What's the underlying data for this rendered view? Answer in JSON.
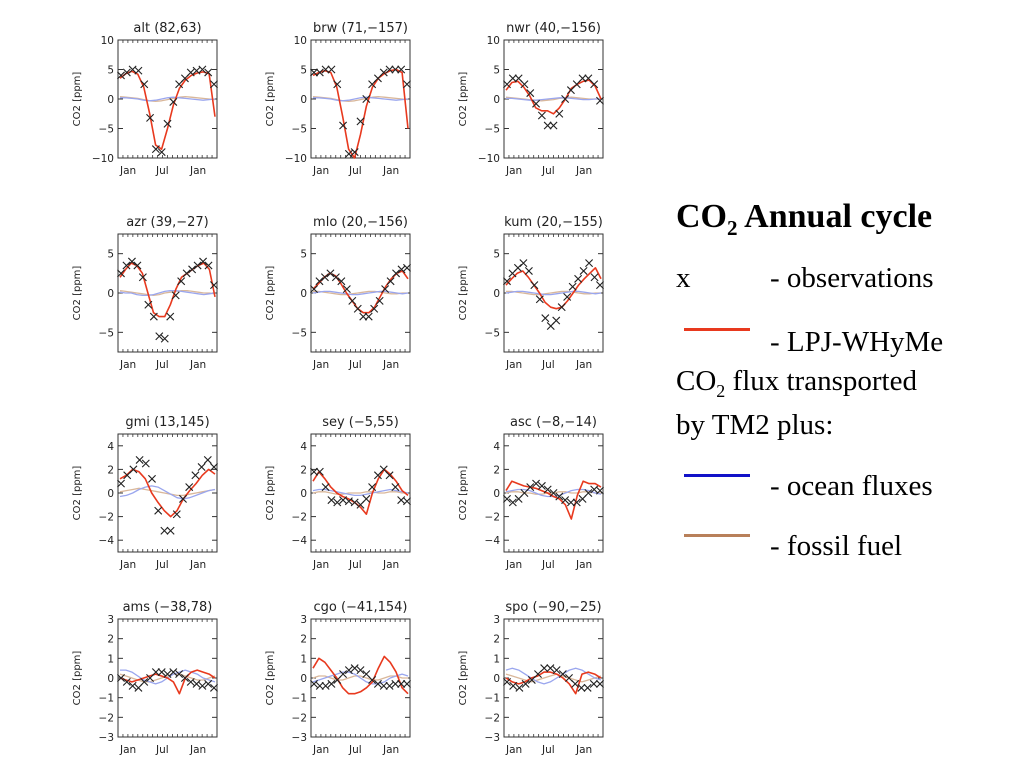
{
  "colors": {
    "model": "#e8391e",
    "ocean": "#1212c8",
    "fossil": "#b8805a",
    "ocean_light": "#9aa6ee",
    "fossil_light": "#d9b79a",
    "obs": "#222222"
  },
  "legend": {
    "title_a": "CO",
    "title_sub": "2",
    "title_b": " Annual cycle",
    "obs_symbol": "x",
    "obs_label": "- observations",
    "model_label": "- LPJ-WHyMe",
    "transport_a": "CO",
    "transport_sub": "2",
    "transport_b": " flux transported",
    "transport_c": "by TM2 plus:",
    "ocean_label": "- ocean fluxes",
    "fossil_label": "- fossil fuel"
  },
  "chart_data": [
    {
      "type": "line",
      "title": "alt (82,63)",
      "ylabel": "CO2 [ppm]",
      "xticks": [
        "Jan",
        "Jul",
        "Jan"
      ],
      "ylim": [
        -10,
        10
      ],
      "yticks": [
        -10,
        -5,
        0,
        5,
        10
      ],
      "obs": [
        4,
        4.5,
        5,
        4.8,
        2.5,
        -3.2,
        -8.5,
        -9,
        -4.2,
        -0.5,
        2.5,
        3.5,
        4.5,
        4.8,
        5,
        4.5,
        2.5
      ],
      "model": [
        3.5,
        4.3,
        4.7,
        4.2,
        2,
        -2.5,
        -7.8,
        -8.5,
        -5,
        -1,
        1.8,
        3.2,
        4,
        4.4,
        4.6,
        4.3,
        -3
      ],
      "ocean": [
        0.2,
        0.2,
        0.1,
        0,
        -0.2,
        -0.3,
        -0.2,
        0,
        0.2,
        0.3,
        0.2,
        0.1,
        0,
        -0.1,
        -0.2,
        -0.1,
        0
      ],
      "fossil": [
        0.4,
        0.3,
        0.2,
        0.1,
        -0.1,
        -0.3,
        -0.4,
        -0.3,
        -0.1,
        0.1,
        0.3,
        0.4,
        0.3,
        0.2,
        0.1,
        0,
        -0.1
      ]
    },
    {
      "type": "line",
      "title": "brw (71,−157)",
      "ylabel": "CO2 [ppm]",
      "xticks": [
        "Jan",
        "Jul",
        "Jan"
      ],
      "ylim": [
        -10,
        10
      ],
      "yticks": [
        -10,
        -5,
        0,
        5,
        10
      ],
      "obs": [
        4.5,
        4.5,
        5,
        5,
        2.5,
        -4.5,
        -9.3,
        -9,
        -3.8,
        0,
        2.5,
        3.5,
        4.5,
        5,
        5,
        5,
        2.5
      ],
      "model": [
        4,
        4.5,
        4.8,
        4.5,
        2,
        -3,
        -8.5,
        -10,
        -6,
        -1.2,
        2,
        3.5,
        4.3,
        4.8,
        5,
        4.5,
        -5
      ],
      "ocean": [
        0.2,
        0.2,
        0.1,
        0,
        -0.2,
        -0.3,
        -0.2,
        0,
        0.2,
        0.3,
        0.2,
        0.1,
        0,
        -0.1,
        -0.2,
        -0.1,
        0
      ],
      "fossil": [
        0.4,
        0.3,
        0.2,
        0.1,
        -0.1,
        -0.3,
        -0.4,
        -0.3,
        -0.1,
        0.1,
        0.3,
        0.4,
        0.3,
        0.2,
        0.1,
        0,
        -0.1
      ]
    },
    {
      "type": "line",
      "title": "nwr (40,−156)",
      "ylabel": "CO2 [ppm]",
      "xticks": [
        "Jan",
        "Jul",
        "Jan"
      ],
      "ylim": [
        -10,
        10
      ],
      "yticks": [
        -10,
        -5,
        0,
        5,
        10
      ],
      "obs": [
        2.5,
        3.5,
        3.5,
        2.5,
        1,
        -0.8,
        -2.8,
        -4.5,
        -4.5,
        -2.5,
        0,
        1.5,
        2.5,
        3.5,
        3.5,
        2.5,
        -0.3
      ],
      "model": [
        1.5,
        2.8,
        3,
        2,
        0.5,
        -1.5,
        -2,
        -2,
        -2.5,
        -1.5,
        0,
        1.8,
        2.5,
        3,
        3.2,
        2.2,
        0
      ],
      "ocean": [
        0.1,
        0.1,
        0,
        -0.1,
        -0.2,
        -0.2,
        -0.1,
        0,
        0.1,
        0.2,
        0.2,
        0.1,
        0,
        -0.1,
        -0.1,
        0,
        0
      ],
      "fossil": [
        0.3,
        0.2,
        0.1,
        0,
        -0.1,
        -0.2,
        -0.3,
        -0.2,
        -0.1,
        0.1,
        0.2,
        0.3,
        0.2,
        0.1,
        0,
        0,
        0
      ]
    },
    {
      "type": "line",
      "title": "azr (39,−27)",
      "ylabel": "CO2 [ppm]",
      "xticks": [
        "Jan",
        "Jul",
        "Jan"
      ],
      "ylim": [
        -7.5,
        7.5
      ],
      "yticks": [
        -5,
        0,
        5
      ],
      "obs": [
        2.5,
        3.5,
        4,
        3.5,
        2,
        -1.5,
        -3,
        -5.5,
        -5.8,
        -3,
        -0.3,
        1.5,
        2.5,
        3,
        3.5,
        4,
        3.5,
        1
      ],
      "model": [
        2,
        3,
        3.8,
        3.5,
        2.5,
        0,
        -2.5,
        -3,
        -3,
        -1.5,
        0.5,
        2,
        2.5,
        3,
        3.5,
        3.8,
        3,
        -0.5
      ],
      "ocean": [
        0.1,
        0,
        0,
        -0.2,
        -0.3,
        -0.3,
        -0.2,
        0,
        0.2,
        0.3,
        0.3,
        0.2,
        0.1,
        0,
        -0.1,
        -0.2,
        -0.1,
        0
      ],
      "fossil": [
        0.3,
        0.2,
        0.1,
        0,
        -0.1,
        -0.2,
        -0.3,
        -0.2,
        0,
        0.1,
        0.2,
        0.3,
        0.3,
        0.2,
        0.1,
        0,
        0,
        -0.1
      ]
    },
    {
      "type": "line",
      "title": "mlo (20,−156)",
      "ylabel": "CO2 [ppm]",
      "xticks": [
        "Jan",
        "Jul",
        "Jan"
      ],
      "ylim": [
        -7.5,
        7.5
      ],
      "yticks": [
        -5,
        0,
        5
      ],
      "obs": [
        0.5,
        1.5,
        2,
        2.5,
        2,
        1.5,
        0.5,
        -1,
        -2,
        -3,
        -3,
        -2,
        -1,
        0.5,
        1.5,
        2.5,
        3,
        3.2
      ],
      "model": [
        0.5,
        1.2,
        2,
        2.5,
        2.2,
        1.2,
        0,
        -1,
        -2,
        -2.5,
        -2.5,
        -1.8,
        -0.5,
        0.8,
        1.8,
        2.5,
        2.8,
        1.8
      ],
      "ocean": [
        0,
        0.1,
        0.2,
        0.2,
        0.1,
        0,
        -0.1,
        -0.2,
        -0.2,
        -0.1,
        0,
        0.1,
        0.2,
        0.2,
        0.1,
        0,
        -0.1,
        0
      ],
      "fossil": [
        0.2,
        0.2,
        0.1,
        0,
        -0.1,
        -0.2,
        -0.2,
        -0.1,
        0,
        0.1,
        0.2,
        0.2,
        0.1,
        0,
        -0.1,
        -0.1,
        0,
        0
      ]
    },
    {
      "type": "line",
      "title": "kum (20,−155)",
      "ylabel": "CO2 [ppm]",
      "xticks": [
        "Jan",
        "Jul",
        "Jan"
      ],
      "ylim": [
        -7.5,
        7.5
      ],
      "yticks": [
        -5,
        0,
        5
      ],
      "obs": [
        1.5,
        2.5,
        3.2,
        3.8,
        2.8,
        1,
        -0.8,
        -3.2,
        -4.2,
        -3.5,
        -1.8,
        -0.5,
        0.8,
        1.8,
        2.8,
        3.8,
        2,
        1
      ],
      "model": [
        1,
        1.8,
        2.5,
        2.8,
        2,
        1,
        0,
        -1.2,
        -1.8,
        -2,
        -1.8,
        -1,
        0,
        1,
        1.8,
        2.5,
        3.2,
        1.8
      ],
      "ocean": [
        0,
        0.1,
        0.2,
        0.2,
        0.1,
        0,
        -0.1,
        -0.2,
        -0.2,
        -0.1,
        0,
        0.1,
        0.2,
        0.2,
        0.1,
        0,
        -0.1,
        0
      ],
      "fossil": [
        0.2,
        0.2,
        0.1,
        0,
        -0.1,
        -0.2,
        -0.2,
        -0.1,
        0,
        0.1,
        0.2,
        0.2,
        0.1,
        0,
        -0.1,
        -0.1,
        0,
        0
      ]
    },
    {
      "type": "line",
      "title": "gmi (13,145)",
      "ylabel": "CO2 [ppm]",
      "xticks": [
        "Jan",
        "Jul",
        "Jan"
      ],
      "ylim": [
        -5,
        5
      ],
      "yticks": [
        -4,
        -2,
        0,
        2,
        4
      ],
      "obs": [
        0.8,
        1.5,
        2,
        2.8,
        2.5,
        1.2,
        -1.5,
        -3.2,
        -3.2,
        -1.8,
        -0.5,
        0.5,
        1.5,
        2.2,
        2.8,
        2.2
      ],
      "model": [
        1.2,
        1.5,
        2,
        1.8,
        1.2,
        0,
        -0.8,
        -1.5,
        -2,
        -1.5,
        -0.5,
        0.2,
        0.8,
        1.5,
        2,
        1.6
      ],
      "ocean": [
        -0.3,
        -0.2,
        0,
        0.3,
        0.5,
        0.6,
        0.5,
        0.2,
        -0.1,
        -0.4,
        -0.5,
        -0.4,
        -0.2,
        0,
        0.2,
        0.3
      ],
      "fossil": [
        0.1,
        0.2,
        0.3,
        0.4,
        0.3,
        0.2,
        0.1,
        0,
        -0.1,
        -0.2,
        -0.2,
        -0.1,
        0,
        0.1,
        0.2,
        0.3
      ]
    },
    {
      "type": "line",
      "title": "sey (−5,55)",
      "ylabel": "CO2 [ppm]",
      "xticks": [
        "Jan",
        "Jul",
        "Jan"
      ],
      "ylim": [
        -5,
        5
      ],
      "yticks": [
        -4,
        -2,
        0,
        2,
        4
      ],
      "obs": [
        1.8,
        1.8,
        0.5,
        -0.6,
        -0.8,
        -0.6,
        -0.7,
        -0.8,
        -1,
        -0.5,
        0.5,
        1.5,
        2,
        1.5,
        0.5,
        -0.6,
        -0.7
      ],
      "model": [
        1,
        1.8,
        1.2,
        0.5,
        0,
        -0.3,
        -0.5,
        -0.8,
        -1.2,
        -1.8,
        0,
        1.2,
        2,
        1.6,
        1,
        0.2,
        -0.2
      ],
      "ocean": [
        0.2,
        0.3,
        0.3,
        0.2,
        0.1,
        0,
        -0.1,
        -0.2,
        -0.2,
        -0.1,
        0,
        0.1,
        0.2,
        0.3,
        0.2,
        0.1,
        0
      ],
      "fossil": [
        0,
        0.1,
        0.1,
        0,
        -0.1,
        -0.1,
        0,
        0,
        0,
        0.1,
        0.1,
        0,
        0,
        0.1,
        0.1,
        0,
        0
      ]
    },
    {
      "type": "line",
      "title": "asc (−8,−14)",
      "ylabel": "CO2 [ppm]",
      "xticks": [
        "Jan",
        "Jul",
        "Jan"
      ],
      "ylim": [
        -5,
        5
      ],
      "yticks": [
        -4,
        -2,
        0,
        2,
        4
      ],
      "obs": [
        -0.5,
        -0.8,
        -0.5,
        0,
        0.5,
        0.8,
        0.6,
        0.3,
        0,
        -0.3,
        -0.6,
        -0.8,
        -0.8,
        -0.5,
        0,
        0.3,
        0.2
      ],
      "model": [
        0.2,
        1,
        0.8,
        0.6,
        0.5,
        0.4,
        0.2,
        0,
        -0.3,
        -0.5,
        -1,
        -2.2,
        -0.2,
        1,
        0.8,
        0.8,
        0.5
      ],
      "ocean": [
        0.1,
        0.2,
        0.3,
        0.3,
        0.2,
        0,
        -0.2,
        -0.3,
        -0.3,
        -0.2,
        0,
        0.2,
        0.3,
        0.3,
        0.2,
        0,
        -0.1
      ],
      "fossil": [
        0,
        0.1,
        0.1,
        0,
        0,
        -0.1,
        -0.1,
        0,
        0,
        0.1,
        0.1,
        0,
        0,
        0.1,
        0.1,
        0,
        0
      ]
    },
    {
      "type": "line",
      "title": "ams (−38,78)",
      "ylabel": "CO2 [ppm]",
      "xticks": [
        "Jan",
        "Jul",
        "Jan"
      ],
      "ylim": [
        -3,
        3
      ],
      "yticks": [
        -3,
        -2,
        -1,
        0,
        1,
        2,
        3
      ],
      "obs": [
        0,
        -0.2,
        -0.4,
        -0.5,
        -0.2,
        0,
        0.3,
        0.3,
        0.2,
        0.3,
        0.2,
        0,
        -0.2,
        -0.3,
        -0.4,
        -0.3,
        -0.5
      ],
      "model": [
        0,
        -0.1,
        -0.2,
        -0.1,
        0,
        0.1,
        0.2,
        0.1,
        0,
        -0.2,
        -0.8,
        0,
        0.3,
        0.4,
        0.3,
        0.2,
        0
      ],
      "ocean": [
        0.4,
        0.4,
        0.3,
        0.1,
        -0.1,
        -0.2,
        -0.3,
        -0.2,
        0,
        0.2,
        0.3,
        0.4,
        0.3,
        0.2,
        0,
        -0.1,
        -0.2
      ],
      "fossil": [
        0.2,
        0.1,
        0,
        -0.1,
        -0.2,
        -0.2,
        -0.1,
        0,
        0.1,
        0.2,
        0.2,
        0.1,
        0,
        -0.1,
        -0.1,
        0,
        0.1
      ]
    },
    {
      "type": "line",
      "title": "cgo (−41,154)",
      "ylabel": "CO2 [ppm]",
      "xticks": [
        "Jan",
        "Jul",
        "Jan"
      ],
      "ylim": [
        -3,
        3
      ],
      "yticks": [
        -3,
        -2,
        -1,
        0,
        1,
        2,
        3
      ],
      "obs": [
        -0.3,
        -0.4,
        -0.4,
        -0.3,
        -0.1,
        0.2,
        0.4,
        0.5,
        0.4,
        0.2,
        -0.1,
        -0.3,
        -0.4,
        -0.4,
        -0.3,
        -0.3,
        -0.3
      ],
      "model": [
        0.5,
        1,
        0.8,
        0.4,
        0,
        -0.5,
        -0.8,
        -0.8,
        -0.7,
        -0.5,
        -0.2,
        0.5,
        1.1,
        0.8,
        0.3,
        -0.5,
        -0.8
      ],
      "ocean": [
        -0.2,
        -0.1,
        0,
        0.1,
        0.2,
        0.3,
        0.3,
        0.2,
        0,
        -0.2,
        -0.3,
        -0.3,
        -0.2,
        0,
        0.1,
        0.2,
        0.1
      ],
      "fossil": [
        0,
        0.1,
        0.1,
        0,
        -0.1,
        -0.1,
        0,
        0.1,
        0.1,
        0,
        -0.1,
        -0.1,
        0,
        0.1,
        0.1,
        0,
        0
      ]
    },
    {
      "type": "line",
      "title": "spo (−90,−25)",
      "ylabel": "CO2 [ppm]",
      "xticks": [
        "Jan",
        "Jul",
        "Jan"
      ],
      "ylim": [
        -3,
        3
      ],
      "yticks": [
        -3,
        -2,
        -1,
        0,
        1,
        2,
        3
      ],
      "obs": [
        -0.2,
        -0.4,
        -0.5,
        -0.3,
        -0.1,
        0.2,
        0.5,
        0.5,
        0.4,
        0.2,
        0,
        -0.3,
        -0.5,
        -0.5,
        -0.3,
        -0.3
      ],
      "model": [
        0,
        -0.2,
        -0.3,
        -0.2,
        0,
        0.1,
        0.3,
        0.3,
        0.2,
        0,
        -0.3,
        -0.8,
        0.2,
        0.3,
        0.2,
        0
      ],
      "ocean": [
        0.4,
        0.5,
        0.4,
        0.2,
        0,
        -0.2,
        -0.3,
        -0.2,
        0,
        0.2,
        0.4,
        0.5,
        0.4,
        0.2,
        0,
        -0.1
      ],
      "fossil": [
        0.2,
        0.1,
        0,
        -0.1,
        -0.2,
        -0.1,
        0,
        0.1,
        0.2,
        0.1,
        0,
        -0.1,
        -0.2,
        -0.1,
        0,
        0.1
      ]
    }
  ]
}
